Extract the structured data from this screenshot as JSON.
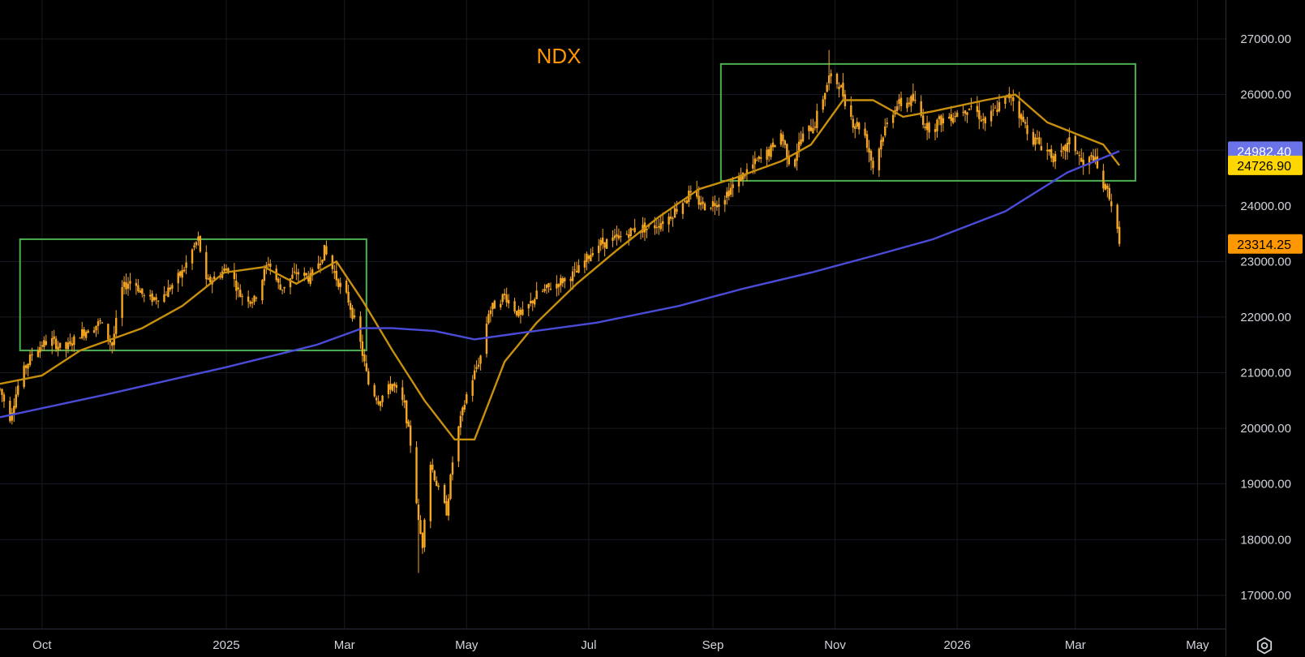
{
  "chart_data": {
    "type": "candlestick",
    "title": "NDX",
    "ylim": [
      16400,
      27700
    ],
    "y_ticks": [
      17000,
      18000,
      19000,
      20000,
      21000,
      22000,
      23000,
      24000,
      25000,
      26000,
      27000
    ],
    "y_tick_labels": [
      "17000.00",
      "18000.00",
      "19000.00",
      "20000.00",
      "21000.00",
      "22000.00",
      "23000.00",
      "24000.00",
      "",
      "26000.00",
      "27000.00"
    ],
    "x_range": [
      "2024-09-10",
      "2026-05-15"
    ],
    "x_ticks": [
      {
        "date": "2024-10-01",
        "label": "Oct"
      },
      {
        "date": "2025-01-01",
        "label": "2025"
      },
      {
        "date": "2025-03-01",
        "label": "Mar"
      },
      {
        "date": "2025-05-01",
        "label": "May"
      },
      {
        "date": "2025-07-01",
        "label": "Jul"
      },
      {
        "date": "2025-09-01",
        "label": "Sep"
      },
      {
        "date": "2025-11-01",
        "label": "Nov"
      },
      {
        "date": "2026-01-01",
        "label": "2026"
      },
      {
        "date": "2026-03-01",
        "label": "Mar"
      },
      {
        "date": "2026-05-01",
        "label": "May"
      }
    ],
    "price_path": [
      [
        "2024-09-10",
        20700
      ],
      [
        "2024-09-15",
        20200
      ],
      [
        "2024-09-20",
        20900
      ],
      [
        "2024-09-27",
        21400
      ],
      [
        "2024-10-05",
        21600
      ],
      [
        "2024-10-12",
        21400
      ],
      [
        "2024-10-20",
        21700
      ],
      [
        "2024-10-30",
        21900
      ],
      [
        "2024-11-05",
        21500
      ],
      [
        "2024-11-10",
        22500
      ],
      [
        "2024-11-15",
        22700
      ],
      [
        "2024-11-22",
        22300
      ],
      [
        "2024-12-01",
        22400
      ],
      [
        "2024-12-10",
        22800
      ],
      [
        "2024-12-15",
        23200
      ],
      [
        "2024-12-18",
        23400
      ],
      [
        "2024-12-22",
        22600
      ],
      [
        "2025-01-02",
        22900
      ],
      [
        "2025-01-08",
        22400
      ],
      [
        "2025-01-15",
        22300
      ],
      [
        "2025-01-22",
        23000
      ],
      [
        "2025-01-28",
        22500
      ],
      [
        "2025-02-05",
        22800
      ],
      [
        "2025-02-12",
        22700
      ],
      [
        "2025-02-19",
        23200
      ],
      [
        "2025-02-25",
        22700
      ],
      [
        "2025-03-03",
        22300
      ],
      [
        "2025-03-08",
        21700
      ],
      [
        "2025-03-13",
        20800
      ],
      [
        "2025-03-18",
        20500
      ],
      [
        "2025-03-25",
        20800
      ],
      [
        "2025-03-31",
        20400
      ],
      [
        "2025-04-04",
        19500
      ],
      [
        "2025-04-07",
        18300
      ],
      [
        "2025-04-09",
        17900
      ],
      [
        "2025-04-12",
        19500
      ],
      [
        "2025-04-16",
        19000
      ],
      [
        "2025-04-21",
        18500
      ],
      [
        "2025-04-25",
        19700
      ],
      [
        "2025-05-01",
        20600
      ],
      [
        "2025-05-08",
        21300
      ],
      [
        "2025-05-12",
        22100
      ],
      [
        "2025-05-20",
        22400
      ],
      [
        "2025-05-28",
        22000
      ],
      [
        "2025-06-05",
        22400
      ],
      [
        "2025-06-15",
        22600
      ],
      [
        "2025-06-25",
        22800
      ],
      [
        "2025-07-05",
        23300
      ],
      [
        "2025-07-15",
        23400
      ],
      [
        "2025-07-25",
        23600
      ],
      [
        "2025-08-01",
        23600
      ],
      [
        "2025-08-10",
        23800
      ],
      [
        "2025-08-15",
        24000
      ],
      [
        "2025-08-20",
        24200
      ],
      [
        "2025-08-28",
        24000
      ],
      [
        "2025-09-05",
        24100
      ],
      [
        "2025-09-12",
        24400
      ],
      [
        "2025-09-20",
        24700
      ],
      [
        "2025-09-30",
        25000
      ],
      [
        "2025-10-05",
        25300
      ],
      [
        "2025-10-10",
        24700
      ],
      [
        "2025-10-15",
        25200
      ],
      [
        "2025-10-22",
        25500
      ],
      [
        "2025-10-29",
        26300
      ],
      [
        "2025-11-03",
        26200
      ],
      [
        "2025-11-10",
        25500
      ],
      [
        "2025-11-15",
        25400
      ],
      [
        "2025-11-20",
        24700
      ],
      [
        "2025-11-25",
        25300
      ],
      [
        "2025-12-01",
        25800
      ],
      [
        "2025-12-10",
        25900
      ],
      [
        "2025-12-17",
        25400
      ],
      [
        "2025-12-22",
        25500
      ],
      [
        "2026-01-02",
        25700
      ],
      [
        "2026-01-08",
        25800
      ],
      [
        "2026-01-15",
        25500
      ],
      [
        "2026-01-22",
        25800
      ],
      [
        "2026-01-28",
        26000
      ],
      [
        "2026-02-03",
        25500
      ],
      [
        "2026-02-08",
        25200
      ],
      [
        "2026-02-15",
        25000
      ],
      [
        "2026-02-20",
        24800
      ],
      [
        "2026-02-27",
        25200
      ],
      [
        "2026-03-05",
        24700
      ],
      [
        "2026-03-10",
        24900
      ],
      [
        "2026-03-14",
        24400
      ],
      [
        "2026-03-18",
        24200
      ],
      [
        "2026-03-21",
        23700
      ],
      [
        "2026-03-23",
        23314
      ]
    ],
    "series": [
      {
        "name": "ma_short",
        "color": "#c8900d",
        "values": [
          [
            "2024-09-10",
            20800
          ],
          [
            "2024-10-01",
            20950
          ],
          [
            "2024-10-20",
            21400
          ],
          [
            "2024-11-20",
            21800
          ],
          [
            "2024-12-10",
            22200
          ],
          [
            "2024-12-31",
            22800
          ],
          [
            "2025-01-20",
            22900
          ],
          [
            "2025-02-05",
            22600
          ],
          [
            "2025-02-25",
            23000
          ],
          [
            "2025-03-10",
            22300
          ],
          [
            "2025-03-25",
            21400
          ],
          [
            "2025-04-10",
            20500
          ],
          [
            "2025-04-25",
            19800
          ],
          [
            "2025-05-05",
            19800
          ],
          [
            "2025-05-20",
            21200
          ],
          [
            "2025-06-05",
            21900
          ],
          [
            "2025-06-25",
            22600
          ],
          [
            "2025-07-15",
            23200
          ],
          [
            "2025-08-05",
            23800
          ],
          [
            "2025-08-25",
            24300
          ],
          [
            "2025-09-12",
            24500
          ],
          [
            "2025-10-05",
            24800
          ],
          [
            "2025-10-20",
            25100
          ],
          [
            "2025-11-05",
            25900
          ],
          [
            "2025-11-20",
            25900
          ],
          [
            "2025-12-05",
            25600
          ],
          [
            "2025-12-20",
            25700
          ],
          [
            "2026-01-15",
            25900
          ],
          [
            "2026-01-30",
            26000
          ],
          [
            "2026-02-15",
            25500
          ],
          [
            "2026-03-01",
            25300
          ],
          [
            "2026-03-15",
            25100
          ],
          [
            "2026-03-23",
            24726.9
          ]
        ]
      },
      {
        "name": "ma_long",
        "color": "#4a4cd8",
        "values": [
          [
            "2024-09-10",
            20200
          ],
          [
            "2024-11-01",
            20600
          ],
          [
            "2025-01-01",
            21100
          ],
          [
            "2025-02-15",
            21500
          ],
          [
            "2025-03-10",
            21800
          ],
          [
            "2025-03-25",
            21800
          ],
          [
            "2025-04-15",
            21750
          ],
          [
            "2025-05-05",
            21600
          ],
          [
            "2025-05-25",
            21700
          ],
          [
            "2025-07-05",
            21900
          ],
          [
            "2025-08-15",
            22200
          ],
          [
            "2025-09-15",
            22500
          ],
          [
            "2025-10-20",
            22800
          ],
          [
            "2025-11-20",
            23100
          ],
          [
            "2025-12-20",
            23400
          ],
          [
            "2026-01-25",
            23900
          ],
          [
            "2026-02-25",
            24600
          ],
          [
            "2026-03-23",
            24982.4
          ]
        ]
      }
    ],
    "price_low": 17400,
    "price_high": 26800,
    "last_price": 23314.25,
    "rectangles": [
      {
        "x0": "2024-09-20",
        "x1": "2025-03-12",
        "y0": 21400,
        "y1": 23400,
        "color": "#4caf50"
      },
      {
        "x0": "2025-09-05",
        "x1": "2026-03-31",
        "y0": 24450,
        "y1": 26550,
        "color": "#4caf50"
      }
    ],
    "badges": [
      {
        "label": "24982.40",
        "value": 24982.4,
        "bg": "#6a73e8",
        "light": true
      },
      {
        "label": "24726.90",
        "value": 24726.9,
        "bg": "#ffd700",
        "light": false
      },
      {
        "label": "23314.25",
        "value": 23314.25,
        "bg": "#ff9800",
        "light": false
      }
    ]
  },
  "icons": {
    "settings": "settings-gear-icon"
  }
}
